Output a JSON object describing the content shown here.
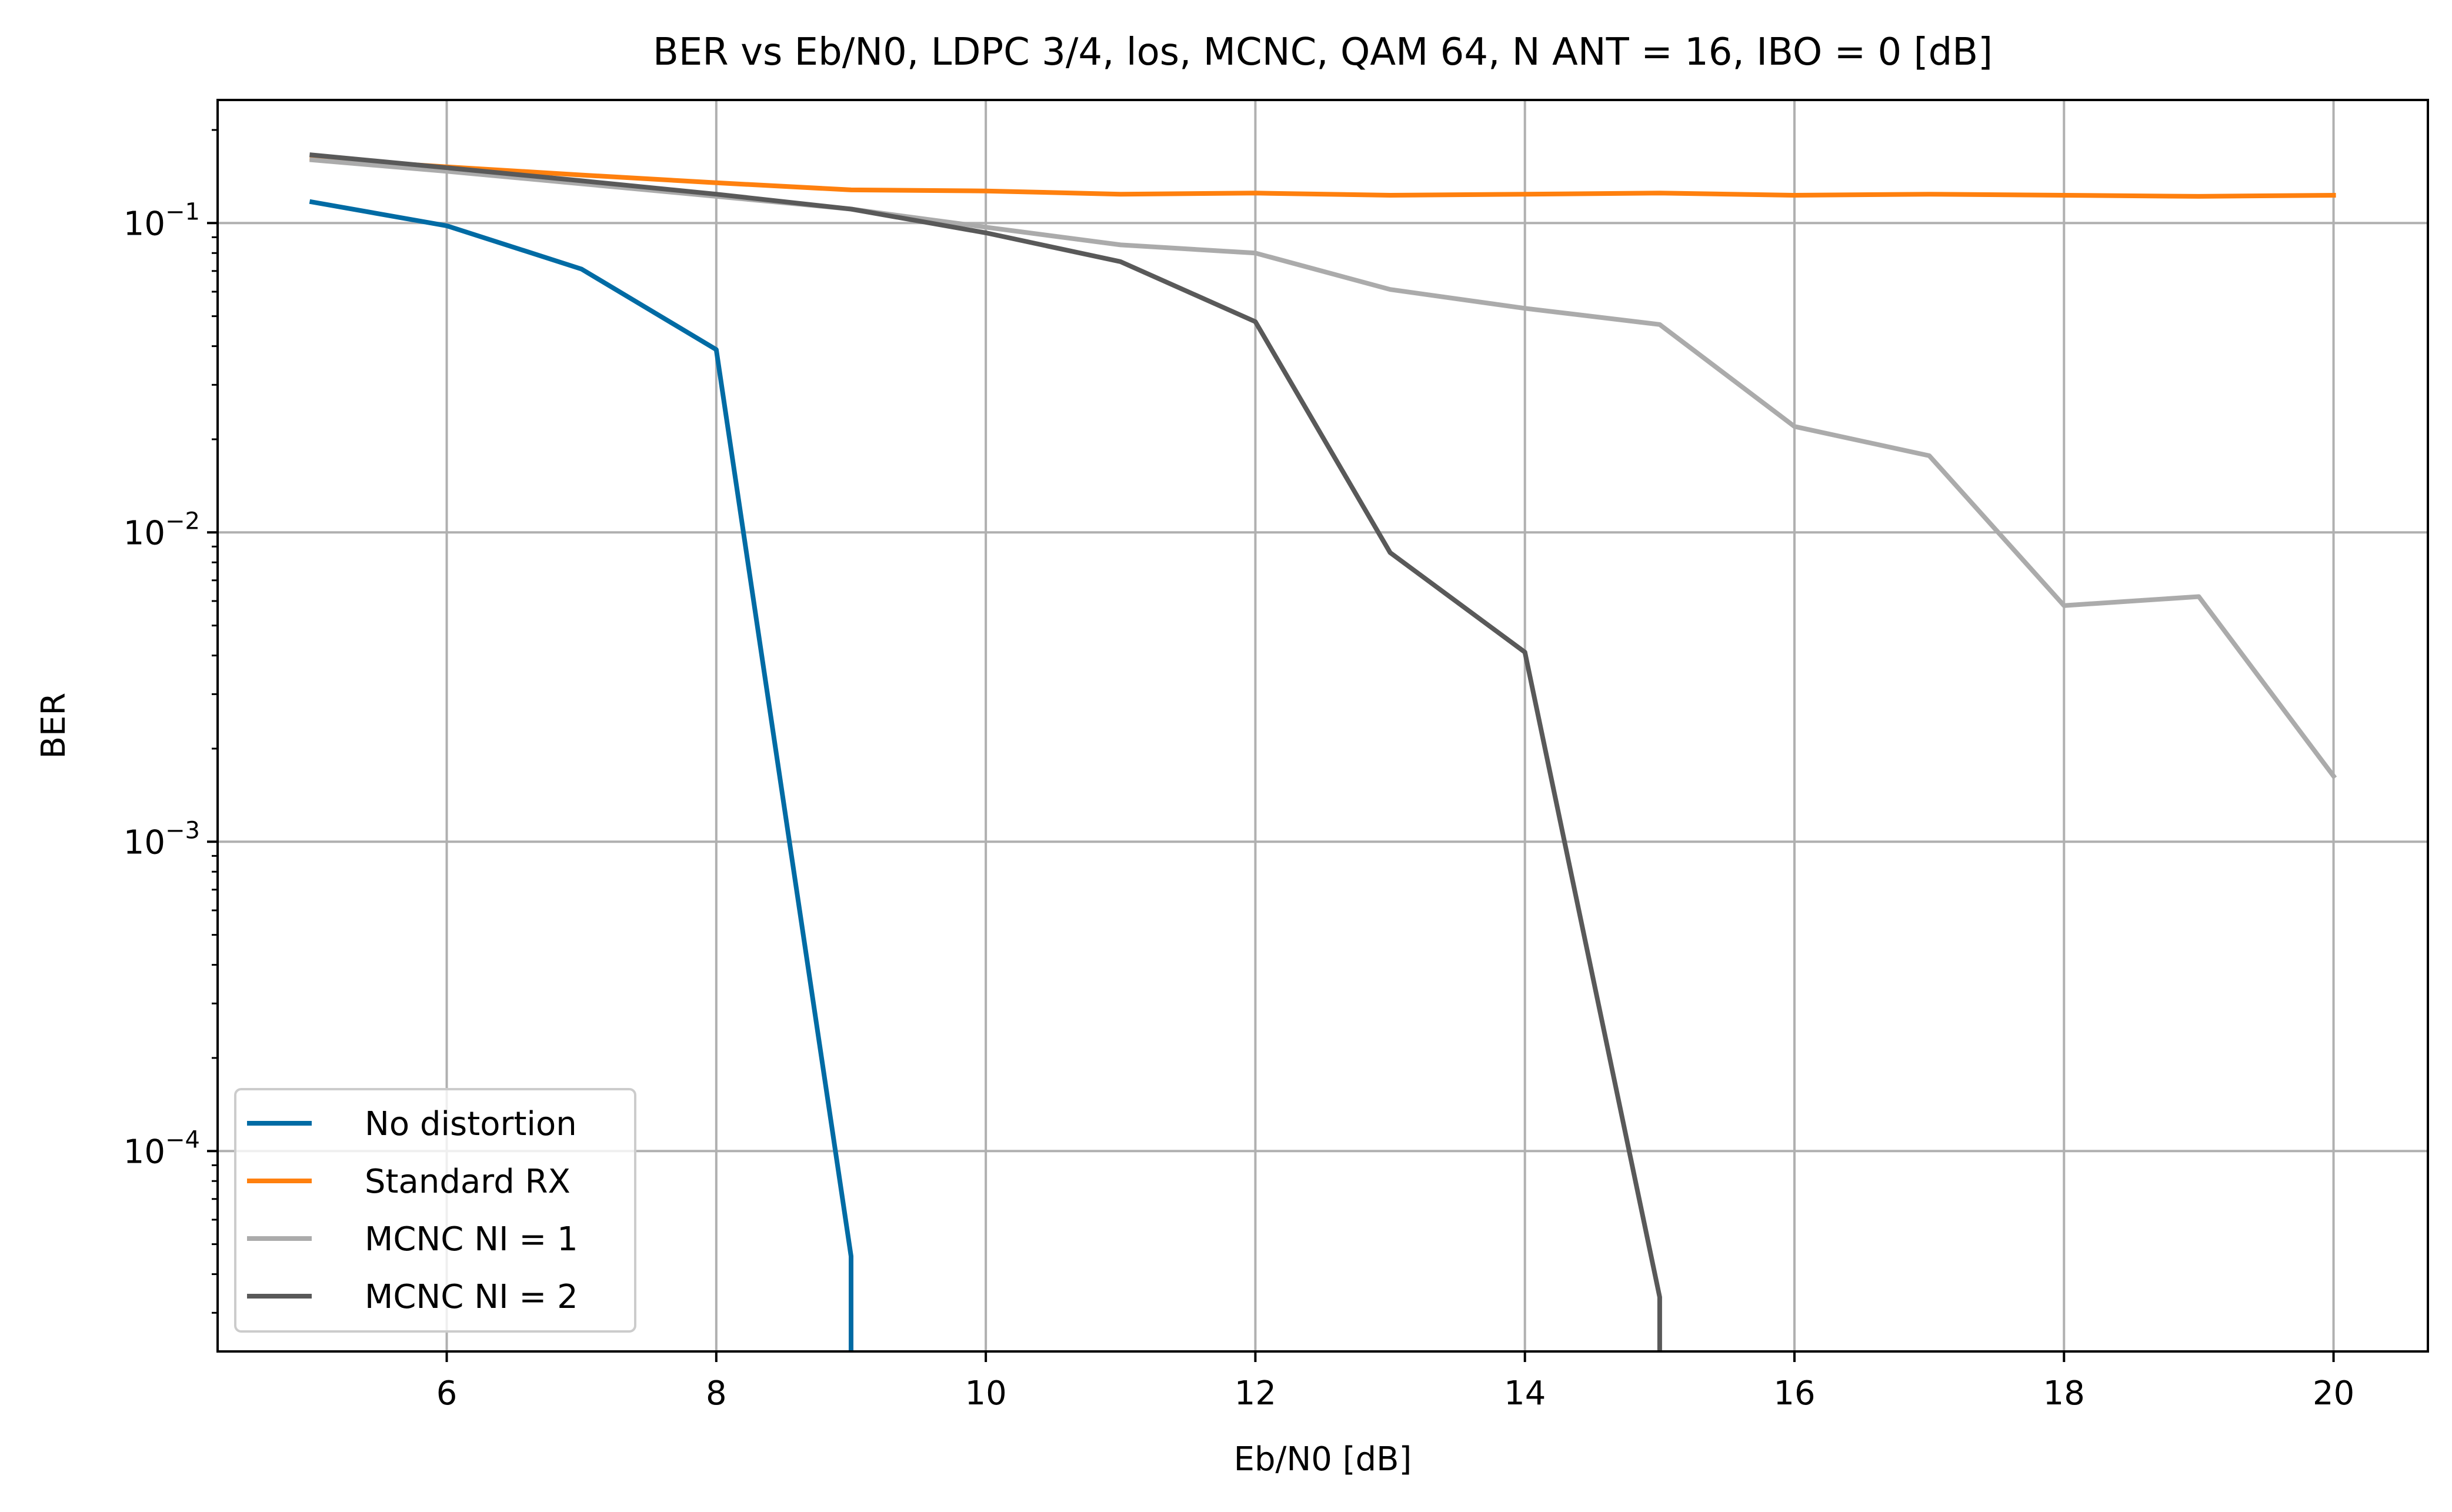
{
  "chart_data": {
    "type": "line",
    "title": "BER vs Eb/N0, LDPC 3/4, los, MCNC, QAM 64, N ANT = 16, IBO = 0 [dB]",
    "xlabel": "Eb/N0 [dB]",
    "ylabel": "BER",
    "xlim": [
      4.3,
      20.7
    ],
    "ylim": [
      2.25e-05,
      0.25
    ],
    "yscale": "log",
    "grid": true,
    "legend_position": "lower-left",
    "x_ticks": [
      6,
      8,
      10,
      12,
      14,
      16,
      18,
      20
    ],
    "x_tick_labels": [
      "6",
      "8",
      "10",
      "12",
      "14",
      "16",
      "18",
      "20"
    ],
    "y_ticks": [
      {
        "value": 0.1,
        "base": "10",
        "exp": "−1"
      },
      {
        "value": 0.01,
        "base": "10",
        "exp": "−2"
      },
      {
        "value": 0.001,
        "base": "10",
        "exp": "−3"
      },
      {
        "value": 0.0001,
        "base": "10",
        "exp": "−4"
      }
    ],
    "series": [
      {
        "name": "No distortion",
        "color": "#006ba4",
        "points": [
          [
            5,
            0.117
          ],
          [
            6,
            0.098
          ],
          [
            7,
            0.071
          ],
          [
            8,
            0.039
          ],
          [
            9,
            4.57e-05
          ],
          [
            9,
            2.25e-05
          ]
        ]
      },
      {
        "name": "Standard RX",
        "color": "#ff800e",
        "points": [
          [
            5,
            0.162
          ],
          [
            6,
            0.152
          ],
          [
            7,
            0.143
          ],
          [
            8,
            0.135
          ],
          [
            9,
            0.128
          ],
          [
            10,
            0.127
          ],
          [
            11,
            0.124
          ],
          [
            12,
            0.125
          ],
          [
            13,
            0.123
          ],
          [
            14,
            0.124
          ],
          [
            15,
            0.125
          ],
          [
            16,
            0.123
          ],
          [
            17,
            0.124
          ],
          [
            18,
            0.123
          ],
          [
            19,
            0.122
          ],
          [
            20,
            0.123
          ]
        ]
      },
      {
        "name": "MCNC NI = 1",
        "color": "#ababab",
        "points": [
          [
            5,
            0.16
          ],
          [
            6,
            0.147
          ],
          [
            7,
            0.134
          ],
          [
            8,
            0.122
          ],
          [
            9,
            0.111
          ],
          [
            10,
            0.097
          ],
          [
            11,
            0.085
          ],
          [
            12,
            0.08
          ],
          [
            13,
            0.061
          ],
          [
            14,
            0.053
          ],
          [
            15,
            0.047
          ],
          [
            16,
            0.022
          ],
          [
            17,
            0.0177
          ],
          [
            18,
            0.0058
          ],
          [
            19,
            0.0062
          ],
          [
            20,
            0.00163
          ]
        ]
      },
      {
        "name": "MCNC NI = 2",
        "color": "#595959",
        "points": [
          [
            5,
            0.166
          ],
          [
            6,
            0.151
          ],
          [
            7,
            0.137
          ],
          [
            8,
            0.124
          ],
          [
            9,
            0.111
          ],
          [
            10,
            0.093
          ],
          [
            11,
            0.075
          ],
          [
            12,
            0.048
          ],
          [
            13,
            0.0086
          ],
          [
            14,
            0.0041
          ],
          [
            15,
            3.37e-05
          ],
          [
            15,
            2.25e-05
          ]
        ]
      }
    ]
  }
}
